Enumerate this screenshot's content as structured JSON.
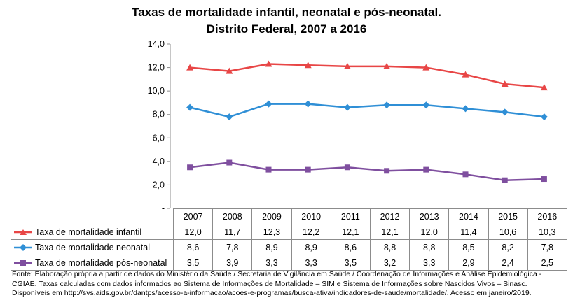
{
  "chart_data": {
    "type": "line",
    "title": "Taxas de mortalidade infantil, neonatal e pós-neonatal.",
    "subtitle": "Distrito Federal, 2007 a 2016",
    "categories": [
      "2007",
      "2008",
      "2009",
      "2010",
      "2011",
      "2012",
      "2013",
      "2014",
      "2015",
      "2016"
    ],
    "ylim": [
      0,
      14
    ],
    "yticks": [
      "-",
      "2,0",
      "4,0",
      "6,0",
      "8,0",
      "10,0",
      "12,0",
      "14,0"
    ],
    "grid": false,
    "legend": "data-table",
    "series": [
      {
        "name": "Taxa de mortalidade infantil",
        "color": "#e84646",
        "marker": "triangle",
        "values": [
          12.0,
          11.7,
          12.3,
          12.2,
          12.1,
          12.1,
          12.0,
          11.4,
          10.6,
          10.3
        ],
        "labels": [
          "12,0",
          "11,7",
          "12,3",
          "12,2",
          "12,1",
          "12,1",
          "12,0",
          "11,4",
          "10,6",
          "10,3"
        ]
      },
      {
        "name": "Taxa de mortalidade neonatal",
        "color": "#2f8fd6",
        "marker": "diamond",
        "values": [
          8.6,
          7.8,
          8.9,
          8.9,
          8.6,
          8.8,
          8.8,
          8.5,
          8.2,
          7.8
        ],
        "labels": [
          "8,6",
          "7,8",
          "8,9",
          "8,9",
          "8,6",
          "8,8",
          "8,8",
          "8,5",
          "8,2",
          "7,8"
        ]
      },
      {
        "name": "Taxa de mortalidade pós-neonatal",
        "color": "#7f4f9f",
        "marker": "square",
        "values": [
          3.5,
          3.9,
          3.3,
          3.3,
          3.5,
          3.2,
          3.3,
          2.9,
          2.4,
          2.5
        ],
        "labels": [
          "3,5",
          "3,9",
          "3,3",
          "3,3",
          "3,5",
          "3,2",
          "3,3",
          "2,9",
          "2,4",
          "2,5"
        ]
      }
    ]
  },
  "footnote": [
    "Fonte: Elaboração própria a partir de dados do Ministério da Saúde / Secretaria de Vigilância em Saúde / Coordenação de Informações e Análise Epidemiológica - CGIAE.  Taxas calculadas com  dados informados ao Sistema de Informações de Mortalidade – SIM e Sistema de Informações sobre Nascidos Vivos – Sinasc.",
    "Disponíveis em http://svs.aids.gov.br/dantps/acesso-a-informacao/acoes-e-programas/busca-ativa/indicadores-de-saude/mortalidade/. Acesso em janeiro/2019."
  ]
}
